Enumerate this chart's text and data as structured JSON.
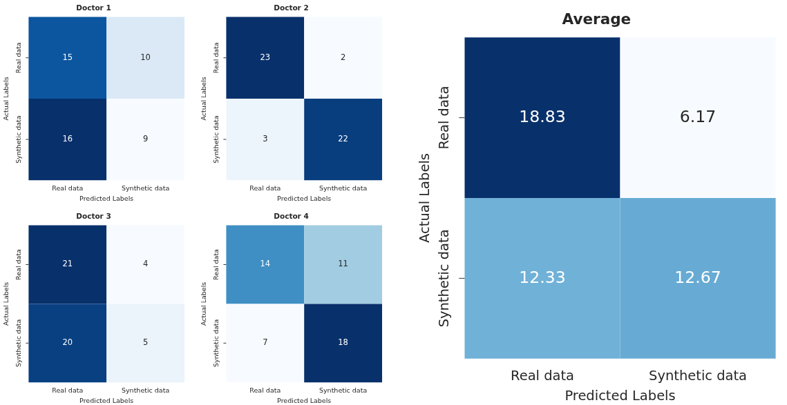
{
  "chart_data": [
    {
      "type": "heatmap",
      "title": "Doctor 1",
      "xlabel": "Predicted Labels",
      "ylabel": "Actual Labels",
      "categories": [
        "Real data",
        "Synthetic data"
      ],
      "y_categories": [
        "Real data",
        "Synthetic data"
      ],
      "cells": [
        [
          15,
          10
        ],
        [
          16,
          9
        ]
      ],
      "data_labels": true,
      "grid": false,
      "legend": false
    },
    {
      "type": "heatmap",
      "title": "Doctor 2",
      "xlabel": "Predicted Labels",
      "ylabel": "Actual Labels",
      "categories": [
        "Real data",
        "Synthetic data"
      ],
      "y_categories": [
        "Real data",
        "Synthetic data"
      ],
      "cells": [
        [
          23,
          2
        ],
        [
          3,
          22
        ]
      ],
      "data_labels": true,
      "grid": false,
      "legend": false
    },
    {
      "type": "heatmap",
      "title": "Doctor 3",
      "xlabel": "Predicted Labels",
      "ylabel": "Actual Labels",
      "categories": [
        "Real data",
        "Synthetic data"
      ],
      "y_categories": [
        "Real data",
        "Synthetic data"
      ],
      "cells": [
        [
          21,
          4
        ],
        [
          20,
          5
        ]
      ],
      "data_labels": true,
      "grid": false,
      "legend": false
    },
    {
      "type": "heatmap",
      "title": "Doctor 4",
      "xlabel": "Predicted Labels",
      "ylabel": "Actual Labels",
      "categories": [
        "Real data",
        "Synthetic data"
      ],
      "y_categories": [
        "Real data",
        "Synthetic data"
      ],
      "cells": [
        [
          14,
          11
        ],
        [
          7,
          18
        ]
      ],
      "data_labels": true,
      "grid": false,
      "legend": false
    },
    {
      "type": "heatmap",
      "title": "Average",
      "xlabel": "Predicted Labels",
      "ylabel": "Actual Labels",
      "categories": [
        "Real data",
        "Synthetic data"
      ],
      "y_categories": [
        "Real data",
        "Synthetic data"
      ],
      "cells": [
        [
          18.83,
          6.17
        ],
        [
          12.33,
          12.67
        ]
      ],
      "data_labels": true,
      "grid": false,
      "legend": false
    }
  ]
}
